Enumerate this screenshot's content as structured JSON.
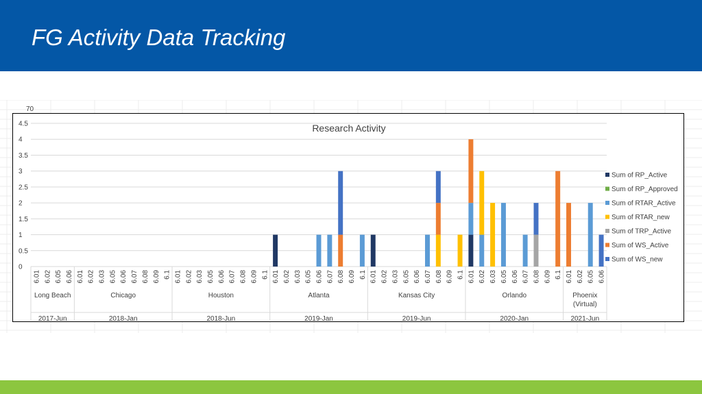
{
  "slide": {
    "title": "FG Activity Data Tracking",
    "colors": {
      "header": "#0457a6",
      "footer": "#8cc63f"
    }
  },
  "sheet": {
    "partial_tick_label": "70"
  },
  "chart_data": {
    "type": "bar",
    "stacked": true,
    "title": "Research Activity",
    "xlabel": "",
    "ylabel": "",
    "ylim": [
      0,
      4.5
    ],
    "yticks": [
      "0",
      "0.5",
      "1",
      "1.5",
      "2",
      "2.5",
      "3",
      "3.5",
      "4",
      "4.5"
    ],
    "grid": true,
    "legend_position": "right",
    "groups": [
      {
        "date": "2017-Jun",
        "location": "Long Beach",
        "subcategories": [
          "6.01",
          "6.02",
          "6.05",
          "6.06"
        ]
      },
      {
        "date": "2018-Jan",
        "location": "Chicago",
        "subcategories": [
          "6.01",
          "6.02",
          "6.03",
          "6.05",
          "6.06",
          "6.07",
          "6.08",
          "6.09",
          "6.1"
        ]
      },
      {
        "date": "2018-Jun",
        "location": "Houston",
        "subcategories": [
          "6.01",
          "6.02",
          "6.03",
          "6.05",
          "6.06",
          "6.07",
          "6.08",
          "6.09",
          "6.1"
        ]
      },
      {
        "date": "2019-Jan",
        "location": "Atlanta",
        "subcategories": [
          "6.01",
          "6.02",
          "6.03",
          "6.05",
          "6.06",
          "6.07",
          "6.08",
          "6.09",
          "6.1"
        ]
      },
      {
        "date": "2019-Jun",
        "location": "Kansas City",
        "subcategories": [
          "6.01",
          "6.02",
          "6.03",
          "6.05",
          "6.06",
          "6.07",
          "6.08",
          "6.09",
          "6.1"
        ]
      },
      {
        "date": "2020-Jan",
        "location": "Orlando",
        "subcategories": [
          "6.01",
          "6.02",
          "6.03",
          "6.05",
          "6.06",
          "6.07",
          "6.08",
          "6.09",
          "6.1"
        ]
      },
      {
        "date": "2021-Jun",
        "location": "Phoenix (Virtual)",
        "subcategories": [
          "6.01",
          "6.02",
          "6.05",
          "6.06"
        ]
      }
    ],
    "series": [
      {
        "name": "Sum of RP_Active",
        "color": "#203864",
        "values": [
          0,
          0,
          0,
          0,
          0,
          0,
          0,
          0,
          0,
          0,
          0,
          0,
          0,
          0,
          0,
          0,
          0,
          0,
          0,
          0,
          0,
          0,
          1,
          0,
          0,
          0,
          0,
          0,
          0,
          0,
          0,
          1,
          0,
          0,
          0,
          0,
          0,
          0,
          0,
          0,
          1,
          0,
          0,
          0,
          0,
          0,
          0,
          0,
          0,
          0,
          0,
          0,
          0
        ]
      },
      {
        "name": "Sum of RP_Approved",
        "color": "#70ad47",
        "values": [
          0,
          0,
          0,
          0,
          0,
          0,
          0,
          0,
          0,
          0,
          0,
          0,
          0,
          0,
          0,
          0,
          0,
          0,
          0,
          0,
          0,
          0,
          0,
          0,
          0,
          0,
          0,
          0,
          0,
          0,
          0,
          0,
          0,
          0,
          0,
          0,
          0,
          0,
          0,
          0,
          0,
          0,
          0,
          0,
          0,
          0,
          0,
          0,
          0,
          0,
          0,
          0,
          0
        ]
      },
      {
        "name": "Sum of RTAR_Active",
        "color": "#5b9bd5",
        "values": [
          0,
          0,
          0,
          0,
          0,
          0,
          0,
          0,
          0,
          0,
          0,
          0,
          0,
          0,
          0,
          0,
          0,
          0,
          0,
          0,
          0,
          0,
          0,
          0,
          0,
          0,
          1,
          1,
          0,
          0,
          1,
          0,
          0,
          0,
          0,
          0,
          1,
          0,
          0,
          0,
          1,
          1,
          0,
          2,
          0,
          1,
          0,
          0,
          0,
          0,
          0,
          2,
          0
        ]
      },
      {
        "name": "Sum of RTAR_new",
        "color": "#ffc000",
        "values": [
          0,
          0,
          0,
          0,
          0,
          0,
          0,
          0,
          0,
          0,
          0,
          0,
          0,
          0,
          0,
          0,
          0,
          0,
          0,
          0,
          0,
          0,
          0,
          0,
          0,
          0,
          0,
          0,
          0,
          0,
          0,
          0,
          0,
          0,
          0,
          0,
          0,
          1,
          0,
          1,
          0,
          2,
          2,
          0,
          0,
          0,
          0,
          0,
          0,
          0,
          0,
          0,
          0
        ]
      },
      {
        "name": "Sum of TRP_Active",
        "color": "#a5a5a5",
        "values": [
          0,
          0,
          0,
          0,
          0,
          0,
          0,
          0,
          0,
          0,
          0,
          0,
          0,
          0,
          0,
          0,
          0,
          0,
          0,
          0,
          0,
          0,
          0,
          0,
          0,
          0,
          0,
          0,
          0,
          0,
          0,
          0,
          0,
          0,
          0,
          0,
          0,
          0,
          0,
          0,
          0,
          0,
          0,
          0,
          0,
          0,
          1,
          0,
          0,
          0,
          0,
          0,
          0
        ]
      },
      {
        "name": "Sum of WS_Active",
        "color": "#ed7d31",
        "values": [
          0,
          0,
          0,
          0,
          0,
          0,
          0,
          0,
          0,
          0,
          0,
          0,
          0,
          0,
          0,
          0,
          0,
          0,
          0,
          0,
          0,
          0,
          0,
          0,
          0,
          0,
          0,
          0,
          1,
          0,
          0,
          0,
          0,
          0,
          0,
          0,
          0,
          1,
          0,
          0,
          2,
          0,
          0,
          0,
          0,
          0,
          0,
          0,
          3,
          2,
          0,
          0,
          0
        ]
      },
      {
        "name": "Sum of WS_new",
        "color": "#4472c4",
        "values": [
          0,
          0,
          0,
          0,
          0,
          0,
          0,
          0,
          0,
          0,
          0,
          0,
          0,
          0,
          0,
          0,
          0,
          0,
          0,
          0,
          0,
          0,
          0,
          0,
          0,
          0,
          0,
          0,
          2,
          0,
          0,
          0,
          0,
          0,
          0,
          0,
          0,
          1,
          0,
          0,
          0,
          0,
          0,
          0,
          0,
          0,
          1,
          0,
          0,
          0,
          0,
          0,
          1
        ]
      }
    ]
  }
}
